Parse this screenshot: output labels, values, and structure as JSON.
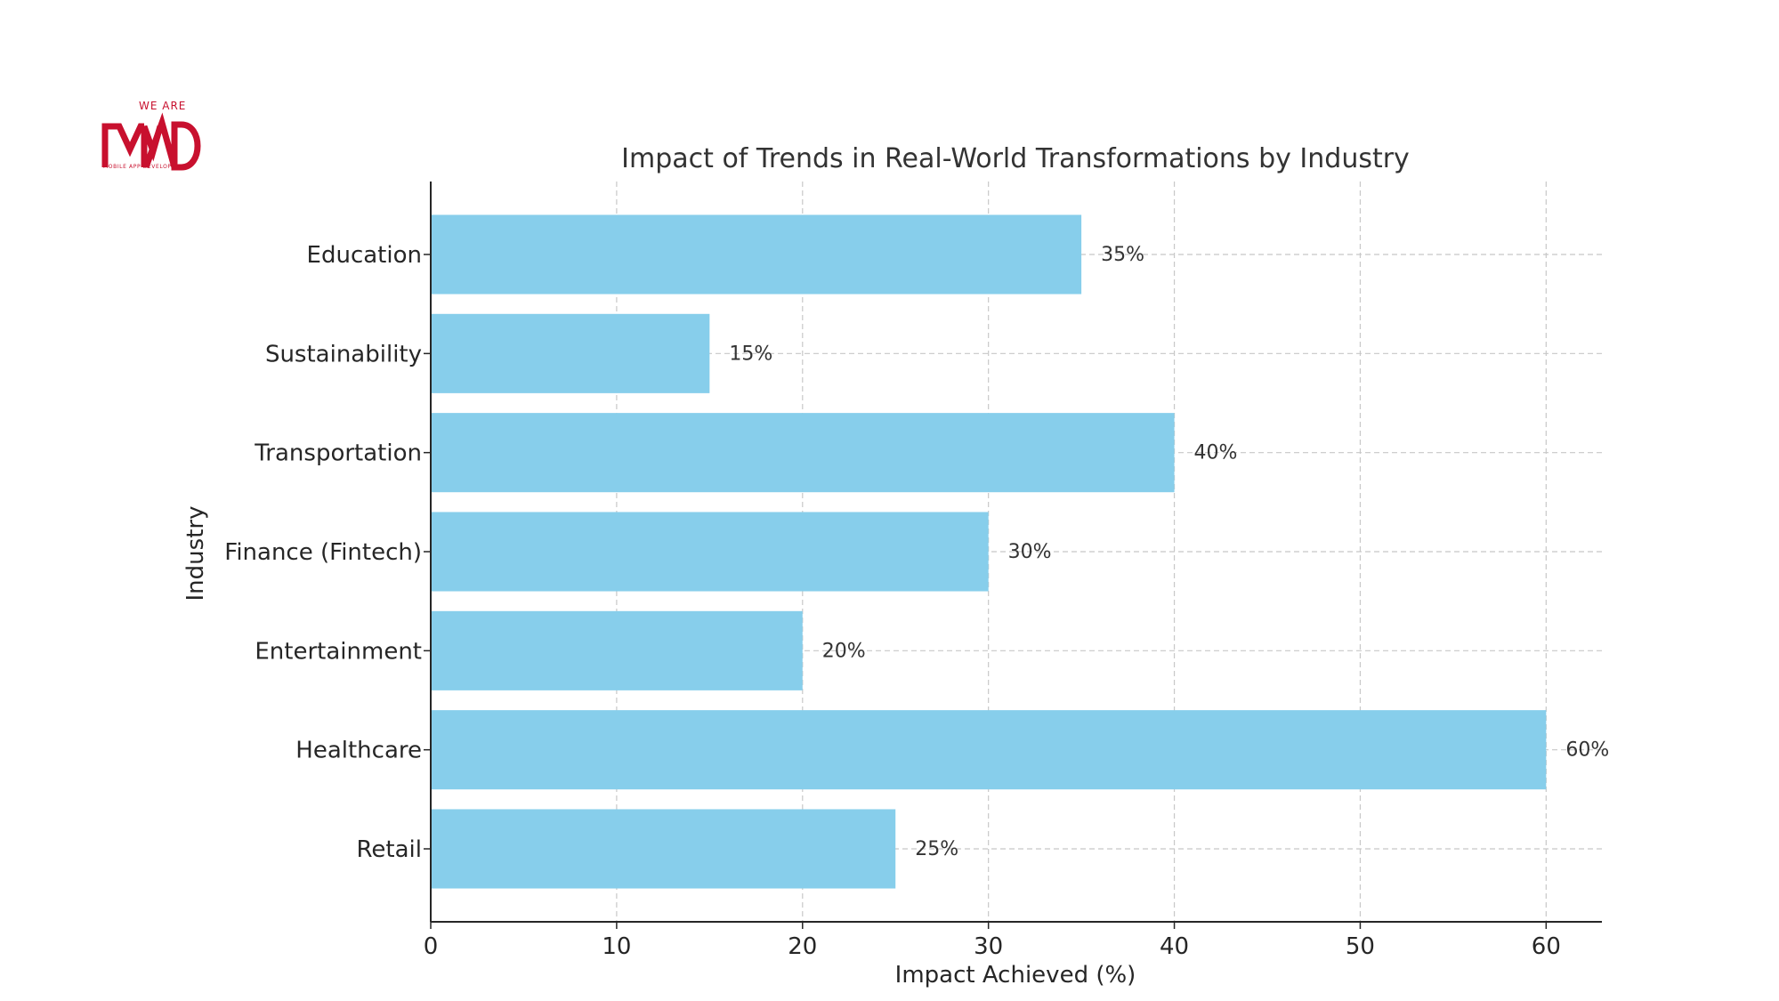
{
  "logo": {
    "top_text": "WE ARE",
    "main_text": "MAD",
    "sub_text": "MOBILE APP DEVELOPERS",
    "color": "#c8102e"
  },
  "chart_data": {
    "type": "bar",
    "orientation": "horizontal",
    "title": "Impact of Trends in Real-World Transformations by Industry",
    "xlabel": "Impact Achieved (%)",
    "ylabel": "Industry",
    "categories": [
      "Education",
      "Sustainability",
      "Transportation",
      "Finance (Fintech)",
      "Entertainment",
      "Healthcare",
      "Retail"
    ],
    "values": [
      35,
      15,
      40,
      30,
      20,
      60,
      25
    ],
    "data_labels": [
      "35%",
      "15%",
      "40%",
      "30%",
      "20%",
      "60%",
      "25%"
    ],
    "xlim": [
      0,
      63
    ],
    "xticks": [
      0,
      10,
      20,
      30,
      40,
      50,
      60
    ],
    "grid": true,
    "bar_color": "#87ceeb"
  }
}
